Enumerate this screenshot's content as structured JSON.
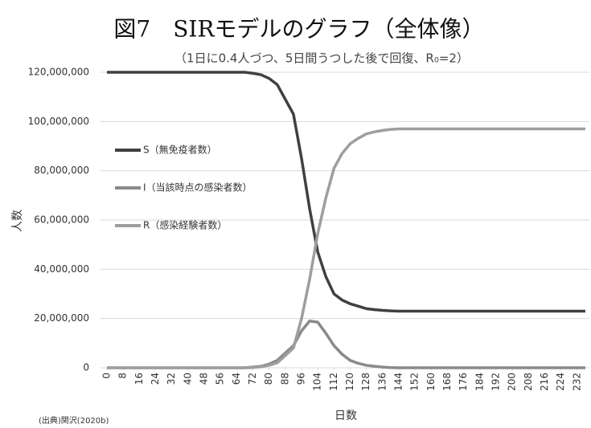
{
  "chart_data": {
    "type": "line",
    "title": "図7　SIRモデルのグラフ（全体像）",
    "subtitle": "（1日に0.4人づつ、5日間うつした後で回復、R₀=2）",
    "y_label": "人数",
    "x_label": "日数",
    "source": "(出典)関沢(2020b)",
    "x": [
      0,
      64,
      68,
      72,
      76,
      80,
      84,
      88,
      92,
      96,
      100,
      104,
      108,
      112,
      116,
      120,
      124,
      128,
      132,
      136,
      140,
      144,
      236
    ],
    "series": [
      {
        "name": "S（無免疫者数）",
        "color": "#404040",
        "values": [
          120000000,
          120000000,
          120000000,
          119600000,
          119000000,
          117500000,
          115000000,
          109000000,
          103000000,
          85000000,
          64500000,
          47000000,
          37000000,
          30000000,
          27500000,
          26000000,
          25000000,
          24000000,
          23600000,
          23300000,
          23100000,
          23000000,
          23000000
        ]
      },
      {
        "name": "I（当該時点の感染者数）",
        "color": "#8a8a8a",
        "values": [
          0,
          0,
          0,
          300000,
          600000,
          1500000,
          3000000,
          6000000,
          9000000,
          15000000,
          19000000,
          18500000,
          14000000,
          9000000,
          5500000,
          3000000,
          1800000,
          1000000,
          600000,
          300000,
          100000,
          0,
          0
        ]
      },
      {
        "name": "R（感染経験者数）",
        "color": "#9e9e9e",
        "values": [
          0,
          0,
          0,
          100000,
          400000,
          1000000,
          2000000,
          5000000,
          8000000,
          20000000,
          36000000,
          54500000,
          69000000,
          81000000,
          87000000,
          91000000,
          93200000,
          95000000,
          95800000,
          96400000,
          96800000,
          97000000,
          97000000
        ]
      }
    ],
    "xlim": [
      0,
      238
    ],
    "xticks": [
      0,
      8,
      16,
      24,
      32,
      40,
      48,
      56,
      64,
      72,
      80,
      88,
      96,
      104,
      112,
      120,
      128,
      136,
      144,
      152,
      160,
      168,
      176,
      184,
      192,
      200,
      208,
      216,
      224,
      232
    ],
    "ylim": [
      0,
      120000000
    ],
    "yticks": [
      0,
      {
        "value": 20000000,
        "label": "20,000,000"
      },
      {
        "value": 40000000,
        "label": "40,000,000"
      },
      {
        "value": 60000000,
        "label": "60,000,000"
      },
      {
        "value": 80000000,
        "label": "80,000,000"
      },
      {
        "value": 100000000,
        "label": "100,000,000"
      },
      {
        "value": 120000000,
        "label": "120,000,000"
      }
    ],
    "grid": true
  }
}
